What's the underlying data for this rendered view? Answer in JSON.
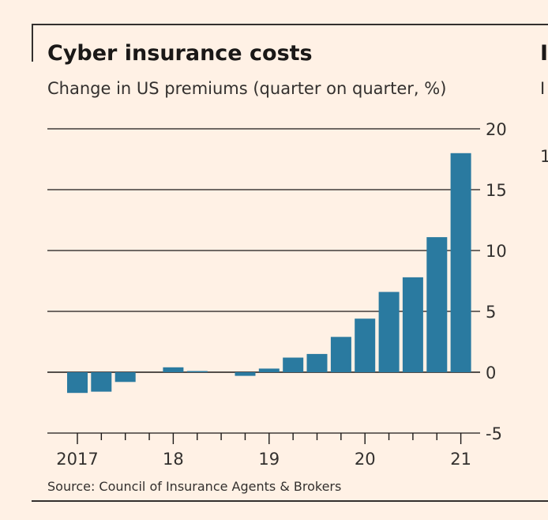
{
  "chart_data": {
    "type": "bar",
    "title": "Cyber insurance costs",
    "subtitle": "Change in US premiums (quarter on quarter, %)",
    "source": "Source: Council of Insurance Agents & Brokers",
    "categories": [
      "2017 Q1",
      "2017 Q2",
      "2017 Q3",
      "2017 Q4",
      "2018 Q1",
      "2018 Q2",
      "2018 Q3",
      "2018 Q4",
      "2019 Q1",
      "2019 Q2",
      "2019 Q3",
      "2019 Q4",
      "2020 Q1",
      "2020 Q2",
      "2020 Q3",
      "2020 Q4",
      "2021 Q1"
    ],
    "values": [
      -1.7,
      -1.6,
      -0.8,
      0,
      0.4,
      0.1,
      0,
      -0.3,
      0.3,
      1.2,
      1.5,
      2.9,
      4.4,
      6.6,
      7.8,
      11.1,
      18.0
    ],
    "xticks": [
      "2017",
      "18",
      "19",
      "20",
      "21"
    ],
    "yticks": [
      20,
      15,
      10,
      5,
      0,
      -5
    ],
    "ylim": [
      -5,
      20
    ],
    "bar_color": "#2a7aa0",
    "grid": true
  },
  "next_panel": {
    "title": "I",
    "subtitle": "I",
    "tick": "1"
  }
}
